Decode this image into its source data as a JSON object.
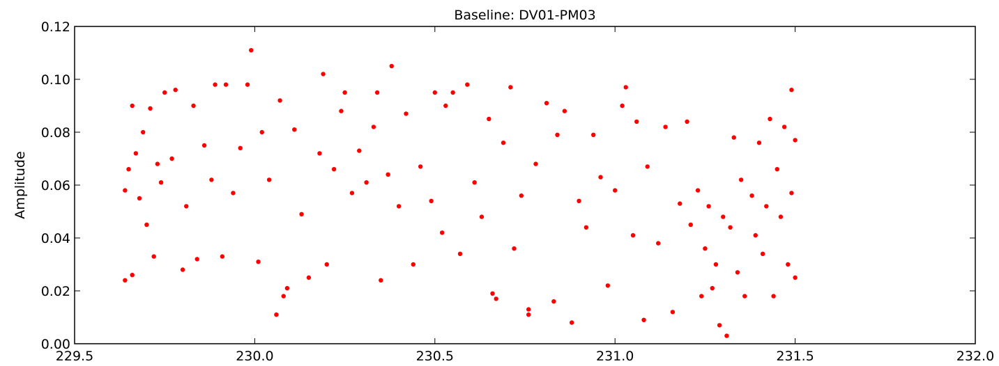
{
  "chart_data": {
    "type": "scatter",
    "title": "Baseline: DV01-PM03",
    "xlabel": "",
    "ylabel": "Amplitude",
    "xlim": [
      229.5,
      232.0
    ],
    "ylim": [
      0.0,
      0.12
    ],
    "x_ticks": [
      "229.5",
      "230.0",
      "230.5",
      "231.0",
      "231.5",
      "232.0"
    ],
    "y_ticks": [
      "0.00",
      "0.02",
      "0.04",
      "0.06",
      "0.08",
      "0.10",
      "0.12"
    ],
    "grid": false,
    "marker_color": "#ff0000",
    "series": [
      {
        "points": [
          [
            229.64,
            0.058
          ],
          [
            229.64,
            0.024
          ],
          [
            229.65,
            0.066
          ],
          [
            229.66,
            0.09
          ],
          [
            229.66,
            0.026
          ],
          [
            229.67,
            0.072
          ],
          [
            229.68,
            0.055
          ],
          [
            229.69,
            0.08
          ],
          [
            229.7,
            0.045
          ],
          [
            229.71,
            0.089
          ],
          [
            229.72,
            0.033
          ],
          [
            229.73,
            0.068
          ],
          [
            229.74,
            0.061
          ],
          [
            229.75,
            0.095
          ],
          [
            229.77,
            0.07
          ],
          [
            229.78,
            0.096
          ],
          [
            229.8,
            0.028
          ],
          [
            229.81,
            0.052
          ],
          [
            229.83,
            0.09
          ],
          [
            229.84,
            0.032
          ],
          [
            229.86,
            0.075
          ],
          [
            229.88,
            0.062
          ],
          [
            229.89,
            0.098
          ],
          [
            229.91,
            0.033
          ],
          [
            229.92,
            0.098
          ],
          [
            229.94,
            0.057
          ],
          [
            229.96,
            0.074
          ],
          [
            229.98,
            0.098
          ],
          [
            229.99,
            0.111
          ],
          [
            230.01,
            0.031
          ],
          [
            230.02,
            0.08
          ],
          [
            230.04,
            0.062
          ],
          [
            230.06,
            0.011
          ],
          [
            230.07,
            0.092
          ],
          [
            230.08,
            0.018
          ],
          [
            230.09,
            0.021
          ],
          [
            230.11,
            0.081
          ],
          [
            230.13,
            0.049
          ],
          [
            230.15,
            0.025
          ],
          [
            230.18,
            0.072
          ],
          [
            230.19,
            0.102
          ],
          [
            230.2,
            0.03
          ],
          [
            230.22,
            0.066
          ],
          [
            230.24,
            0.088
          ],
          [
            230.25,
            0.095
          ],
          [
            230.27,
            0.057
          ],
          [
            230.29,
            0.073
          ],
          [
            230.31,
            0.061
          ],
          [
            230.33,
            0.082
          ],
          [
            230.34,
            0.095
          ],
          [
            230.35,
            0.024
          ],
          [
            230.37,
            0.064
          ],
          [
            230.38,
            0.105
          ],
          [
            230.4,
            0.052
          ],
          [
            230.42,
            0.087
          ],
          [
            230.44,
            0.03
          ],
          [
            230.46,
            0.067
          ],
          [
            230.49,
            0.054
          ],
          [
            230.5,
            0.095
          ],
          [
            230.52,
            0.042
          ],
          [
            230.53,
            0.09
          ],
          [
            230.55,
            0.095
          ],
          [
            230.57,
            0.034
          ],
          [
            230.59,
            0.098
          ],
          [
            230.61,
            0.061
          ],
          [
            230.63,
            0.048
          ],
          [
            230.65,
            0.085
          ],
          [
            230.66,
            0.019
          ],
          [
            230.67,
            0.017
          ],
          [
            230.69,
            0.076
          ],
          [
            230.71,
            0.097
          ],
          [
            230.72,
            0.036
          ],
          [
            230.74,
            0.056
          ],
          [
            230.76,
            0.013
          ],
          [
            230.76,
            0.011
          ],
          [
            230.78,
            0.068
          ],
          [
            230.81,
            0.091
          ],
          [
            230.83,
            0.016
          ],
          [
            230.84,
            0.079
          ],
          [
            230.86,
            0.088
          ],
          [
            230.88,
            0.008
          ],
          [
            230.9,
            0.054
          ],
          [
            230.92,
            0.044
          ],
          [
            230.94,
            0.079
          ],
          [
            230.96,
            0.063
          ],
          [
            230.98,
            0.022
          ],
          [
            231.0,
            0.058
          ],
          [
            231.02,
            0.09
          ],
          [
            231.03,
            0.097
          ],
          [
            231.05,
            0.041
          ],
          [
            231.06,
            0.084
          ],
          [
            231.08,
            0.009
          ],
          [
            231.09,
            0.067
          ],
          [
            231.12,
            0.038
          ],
          [
            231.14,
            0.082
          ],
          [
            231.16,
            0.012
          ],
          [
            231.18,
            0.053
          ],
          [
            231.2,
            0.084
          ],
          [
            231.21,
            0.045
          ],
          [
            231.23,
            0.058
          ],
          [
            231.24,
            0.018
          ],
          [
            231.25,
            0.036
          ],
          [
            231.26,
            0.052
          ],
          [
            231.27,
            0.021
          ],
          [
            231.28,
            0.03
          ],
          [
            231.29,
            0.007
          ],
          [
            231.3,
            0.048
          ],
          [
            231.31,
            0.003
          ],
          [
            231.32,
            0.044
          ],
          [
            231.33,
            0.078
          ],
          [
            231.34,
            0.027
          ],
          [
            231.35,
            0.062
          ],
          [
            231.36,
            0.018
          ],
          [
            231.38,
            0.056
          ],
          [
            231.39,
            0.041
          ],
          [
            231.4,
            0.076
          ],
          [
            231.41,
            0.034
          ],
          [
            231.42,
            0.052
          ],
          [
            231.43,
            0.085
          ],
          [
            231.44,
            0.018
          ],
          [
            231.45,
            0.066
          ],
          [
            231.46,
            0.048
          ],
          [
            231.47,
            0.082
          ],
          [
            231.48,
            0.03
          ],
          [
            231.49,
            0.096
          ],
          [
            231.49,
            0.057
          ],
          [
            231.5,
            0.025
          ],
          [
            231.5,
            0.077
          ]
        ]
      }
    ]
  }
}
